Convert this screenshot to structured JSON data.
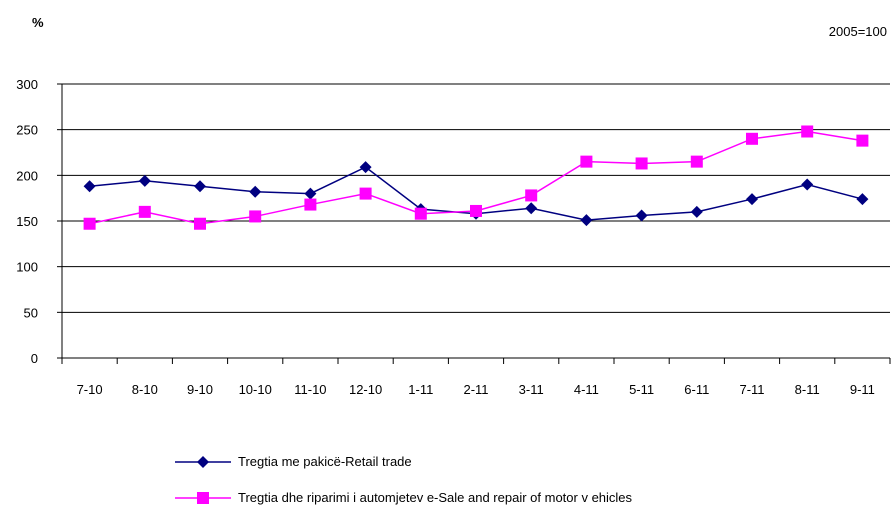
{
  "header": {
    "unit": "%",
    "base_note": "2005=100"
  },
  "chart_data": {
    "type": "line",
    "categories": [
      "7-10",
      "8-10",
      "9-10",
      "10-10",
      "11-10",
      "12-10",
      "1-11",
      "2-11",
      "3-11",
      "4-11",
      "5-11",
      "6-11",
      "7-11",
      "8-11",
      "9-11"
    ],
    "ylim": [
      0,
      300
    ],
    "yticks": [
      0,
      50,
      100,
      150,
      200,
      250,
      300
    ],
    "grid": true,
    "legend_position": "bottom",
    "series": [
      {
        "name": "Tregtia me pakicë-Retail trade",
        "color": "#000080",
        "marker": "diamond",
        "values": [
          188,
          194,
          188,
          182,
          180,
          209,
          163,
          158,
          164,
          151,
          156,
          160,
          174,
          190,
          174
        ]
      },
      {
        "name": "Tregtia dhe riparimi i automjetev e-Sale and repair of motor v ehicles",
        "color": "#FF00FF",
        "marker": "square",
        "values": [
          147,
          160,
          147,
          155,
          168,
          180,
          158,
          161,
          178,
          215,
          213,
          215,
          240,
          248,
          238
        ]
      }
    ]
  }
}
